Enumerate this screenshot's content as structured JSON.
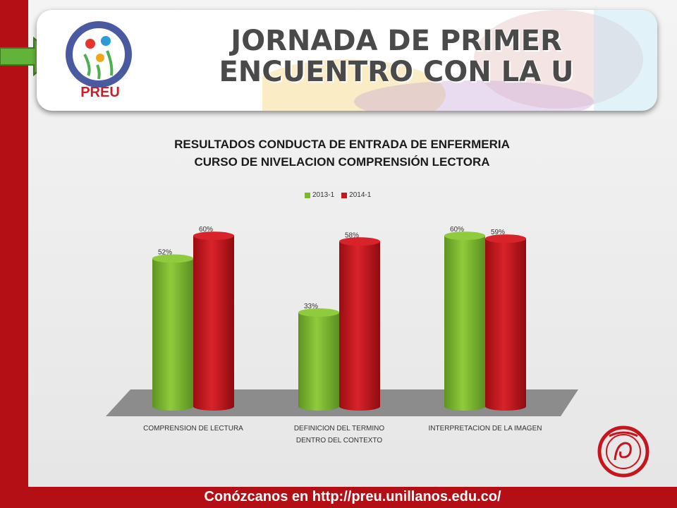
{
  "header": {
    "title_line1": "JORNADA DE PRIMER",
    "title_line2": "ENCUENTRO CON LA U",
    "logo_text": "PREU"
  },
  "footer": {
    "text": "Conózcanos en http://preu.unillanos.edu.co/"
  },
  "colors": {
    "accent": "#b30f14",
    "series_2013": "#7cb82f",
    "series_2014": "#c8141c"
  },
  "chart_data": {
    "type": "bar",
    "title_line1": "RESULTADOS CONDUCTA DE ENTRADA DE ENFERMERIA",
    "title_line2": "CURSO DE NIVELACION COMPRENSIÓN LECTORA",
    "categories": [
      [
        "COMPRENSION DE LECTURA"
      ],
      [
        "DEFINICION DEL TERMINO",
        "DENTRO DEL CONTEXTO"
      ],
      [
        "INTERPRETACION DE LA IMAGEN"
      ]
    ],
    "series": [
      {
        "name": "2013-1",
        "values": [
          52,
          33,
          60
        ],
        "labels": [
          "52%",
          "33%",
          "60%"
        ]
      },
      {
        "name": "2014-1",
        "values": [
          60,
          58,
          59
        ],
        "labels": [
          "60%",
          "58%",
          "59%"
        ]
      }
    ],
    "ylim": [
      0,
      70
    ],
    "legend": "top"
  }
}
